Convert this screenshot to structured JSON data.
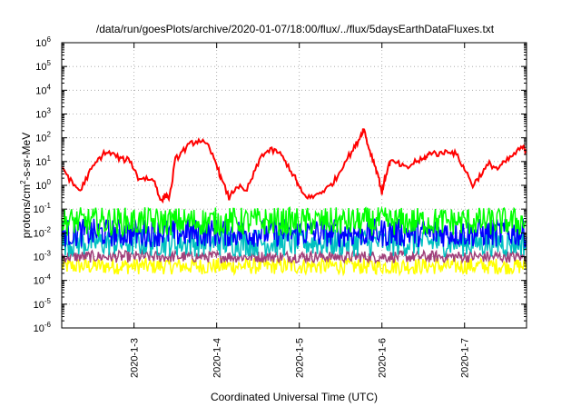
{
  "chart_data": {
    "type": "line",
    "title": "/data/run/goesPlots/archive/2020-01-07/18:00/flux/../flux/5daysEarthDataFluxes.txt",
    "xlabel": "Coordinated Universal Time (UTC)",
    "ylabel_main": "protons/cm",
    "ylabel_sup": "2",
    "ylabel_rest": "-s-sr-MeV",
    "y_scale": "log",
    "ylim_exp": [
      -6,
      6
    ],
    "y_tick_exponents": [
      -6,
      -5,
      -4,
      -3,
      -2,
      -1,
      0,
      1,
      2,
      3,
      4,
      5,
      6
    ],
    "y_tick_base": "10",
    "x_range_days": [
      "2020-01-02 03:00",
      "2020-01-07 18:00"
    ],
    "x_tick_labels": [
      "2020-1-3",
      "2020-1-4",
      "2020-1-5",
      "2020-1-6",
      "2020-1-7"
    ],
    "grid": true,
    "legend": "none",
    "series": [
      {
        "color": "#ff0000",
        "x_days": [
          2.05,
          2.15,
          2.25,
          2.35,
          2.45,
          2.55,
          2.65,
          2.75,
          2.85,
          2.95,
          3.05,
          3.15,
          3.25,
          3.33,
          3.38,
          3.43,
          3.5,
          3.6,
          3.7,
          3.8,
          3.9,
          4.0,
          4.05,
          4.15,
          4.25,
          4.35,
          4.45,
          4.55,
          4.65,
          4.75,
          4.85,
          4.95,
          5.0,
          5.05,
          5.15,
          5.25,
          5.35,
          5.45,
          5.55,
          5.65,
          5.73,
          5.78,
          5.83,
          5.9,
          5.95,
          6.0,
          6.05,
          6.1,
          6.2,
          6.3,
          6.4,
          6.5,
          6.55,
          6.6,
          6.7,
          6.8,
          6.9,
          7.0,
          7.1,
          7.2,
          7.3,
          7.4,
          7.5,
          7.6,
          7.7,
          7.75
        ],
        "y": [
          5,
          5,
          1.2,
          0.6,
          3,
          10,
          25,
          20,
          12,
          12,
          2,
          2,
          1.5,
          0.2,
          0.4,
          0.3,
          12,
          30,
          60,
          80,
          40,
          8,
          2,
          0.3,
          1,
          0.5,
          3,
          20,
          30,
          25,
          8,
          2,
          0.8,
          0.4,
          0.3,
          0.5,
          0.8,
          2,
          10,
          30,
          100,
          250,
          50,
          10,
          3,
          0.5,
          3,
          10,
          8,
          5,
          10,
          12,
          18,
          25,
          20,
          30,
          20,
          5,
          1,
          3,
          8,
          5,
          10,
          20,
          40,
          30
        ]
      },
      {
        "color": "#00ff00",
        "level": 0.03
      },
      {
        "color": "#0000ff",
        "level": 0.01
      },
      {
        "color": "#00c0c0",
        "level": 0.004
      },
      {
        "color": "#a0407a",
        "level": 0.001
      },
      {
        "color": "#ffff00",
        "level": 0.0004
      }
    ]
  }
}
